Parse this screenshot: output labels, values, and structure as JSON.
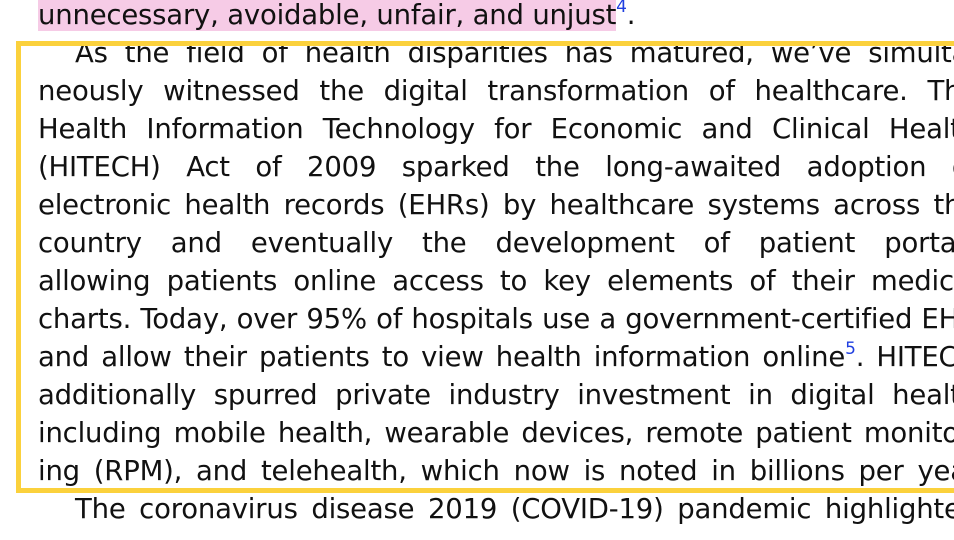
{
  "paragraph1_tail": {
    "text": "unnecessary, avoidable, unfair, and unjust",
    "citation": "4",
    "end": "."
  },
  "paragraph2": {
    "lines": [
      "As the field of health disparities has matured, we’ve simulta-",
      "neously witnessed the digital transformation of healthcare. The",
      "Health Information Technology for Economic and Clinical Health",
      "(HITECH) Act of 2009 sparked the long-awaited adoption of",
      "electronic health records (EHRs) by healthcare systems across the",
      "country and eventually the development of patient portals",
      "allowing patients online access to key elements of their medical",
      "charts. Today, over 95% of hospitals use a government-certified EHR"
    ],
    "line9": {
      "before": "and allow their patients to view health information online",
      "citation": "5",
      "after": ". HITECH"
    },
    "lines_after": [
      "additionally spurred private industry investment in digital health",
      "including mobile health, wearable devices, remote patient monitor-",
      "ing (RPM), and telehealth, which now is noted in billions per year"
    ]
  },
  "paragraph3": {
    "line1": "The coronavirus disease 2019 (COVID-19) pandemic highlighted"
  },
  "colors": {
    "highlight_box": "#fbd13c",
    "text_highlight": "#f6cbe6",
    "citation": "#1f3fe0"
  }
}
